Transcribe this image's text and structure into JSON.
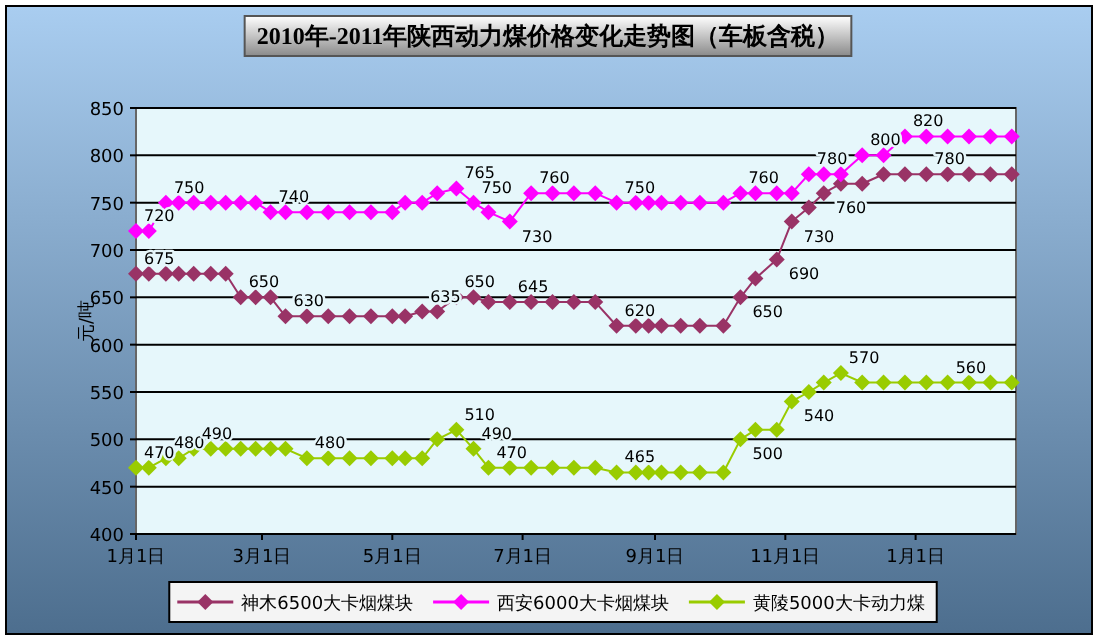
{
  "chart_data": {
    "type": "line",
    "title": "2010年-2011年陕西动力煤价格变化走势图（车板含税）",
    "ylabel": "元/吨",
    "x": [
      "2010-01-01",
      "2010-01-07",
      "2010-01-15",
      "2010-01-21",
      "2010-01-28",
      "2010-02-05",
      "2010-02-12",
      "2010-02-19",
      "2010-02-26",
      "2010-03-05",
      "2010-03-12",
      "2010-03-22",
      "2010-04-01",
      "2010-04-11",
      "2010-04-21",
      "2010-05-01",
      "2010-05-07",
      "2010-05-15",
      "2010-05-22",
      "2010-05-31",
      "2010-06-08",
      "2010-06-15",
      "2010-06-25",
      "2010-07-05",
      "2010-07-15",
      "2010-07-25",
      "2010-08-04",
      "2010-08-14",
      "2010-08-23",
      "2010-08-29",
      "2010-09-04",
      "2010-09-13",
      "2010-09-22",
      "2010-10-03",
      "2010-10-11",
      "2010-10-18",
      "2010-10-28",
      "2010-11-04",
      "2010-11-12",
      "2010-11-19",
      "2010-11-27",
      "2010-12-07",
      "2010-12-17",
      "2010-12-27",
      "2011-01-06",
      "2011-01-16",
      "2011-01-26",
      "2011-02-05",
      "2011-02-15"
    ],
    "series": [
      {
        "name": "神木6500大卡烟煤块",
        "color": "#993366",
        "values": [
          675,
          675,
          675,
          675,
          675,
          675,
          675,
          650,
          650,
          650,
          630,
          630,
          630,
          630,
          630,
          630,
          630,
          635,
          635,
          650,
          650,
          645,
          645,
          645,
          645,
          645,
          645,
          620,
          620,
          620,
          620,
          620,
          620,
          620,
          650,
          670,
          690,
          730,
          745,
          760,
          770,
          770,
          780,
          780,
          780,
          780,
          780,
          780,
          780
        ],
        "value_labels": [
          "675",
          null,
          null,
          null,
          null,
          null,
          null,
          "650",
          null,
          null,
          "630",
          null,
          null,
          null,
          null,
          null,
          null,
          "635",
          null,
          "650",
          null,
          null,
          "645",
          null,
          null,
          null,
          null,
          "620",
          null,
          null,
          null,
          null,
          null,
          null,
          "650",
          null,
          "690",
          "730",
          null,
          "760",
          null,
          null,
          null,
          null,
          "780",
          null,
          null,
          null,
          null
        ]
      },
      {
        "name": "西安6000大卡烟煤块",
        "color": "#ff00ff",
        "values": [
          720,
          720,
          750,
          750,
          750,
          750,
          750,
          750,
          750,
          740,
          740,
          740,
          740,
          740,
          740,
          740,
          750,
          750,
          760,
          765,
          750,
          740,
          730,
          760,
          760,
          760,
          760,
          750,
          750,
          750,
          750,
          750,
          750,
          750,
          760,
          760,
          760,
          760,
          780,
          780,
          780,
          800,
          800,
          820,
          820,
          820,
          820,
          820,
          820
        ],
        "value_labels": [
          "720",
          null,
          "750",
          null,
          null,
          null,
          null,
          null,
          null,
          "740",
          null,
          null,
          null,
          null,
          null,
          null,
          null,
          null,
          null,
          "765",
          "750",
          null,
          "730",
          "760",
          null,
          null,
          null,
          "750",
          null,
          null,
          null,
          null,
          null,
          null,
          "760",
          null,
          null,
          null,
          "780",
          null,
          null,
          "800",
          null,
          "820",
          null,
          null,
          null,
          null,
          null
        ]
      },
      {
        "name": "黄陵5000大卡动力煤",
        "color": "#99cc00",
        "values": [
          470,
          470,
          480,
          480,
          490,
          490,
          490,
          490,
          490,
          490,
          490,
          480,
          480,
          480,
          480,
          480,
          480,
          480,
          500,
          510,
          490,
          470,
          470,
          470,
          470,
          470,
          470,
          465,
          465,
          465,
          465,
          465,
          465,
          465,
          500,
          510,
          510,
          540,
          550,
          560,
          570,
          560,
          560,
          560,
          560,
          560,
          560,
          560,
          560
        ],
        "value_labels": [
          "470",
          null,
          "480",
          null,
          "490",
          null,
          null,
          null,
          null,
          null,
          null,
          "480",
          null,
          null,
          null,
          null,
          null,
          null,
          null,
          "510",
          "490",
          "470",
          null,
          null,
          null,
          null,
          null,
          "465",
          null,
          null,
          null,
          null,
          null,
          null,
          "500",
          null,
          null,
          "540",
          null,
          null,
          "570",
          null,
          null,
          null,
          null,
          "560",
          null,
          null,
          null
        ]
      }
    ],
    "xlim": [
      "2010-01-01",
      "2011-02-17"
    ],
    "xticks": [
      {
        "value": "2010-01-01",
        "label": "1月1日"
      },
      {
        "value": "2010-03-01",
        "label": "3月1日"
      },
      {
        "value": "2010-05-01",
        "label": "5月1日"
      },
      {
        "value": "2010-07-01",
        "label": "7月1日"
      },
      {
        "value": "2010-09-01",
        "label": "9月1日"
      },
      {
        "value": "2010-11-01",
        "label": "11月1日"
      },
      {
        "value": "2011-01-01",
        "label": "1月1日"
      }
    ],
    "ylim": [
      400,
      850
    ],
    "yticks": [
      400,
      450,
      500,
      550,
      600,
      650,
      700,
      750,
      800,
      850
    ],
    "grid": "y",
    "legend": "bottom",
    "marker": "diamond",
    "line_style": "solid"
  }
}
